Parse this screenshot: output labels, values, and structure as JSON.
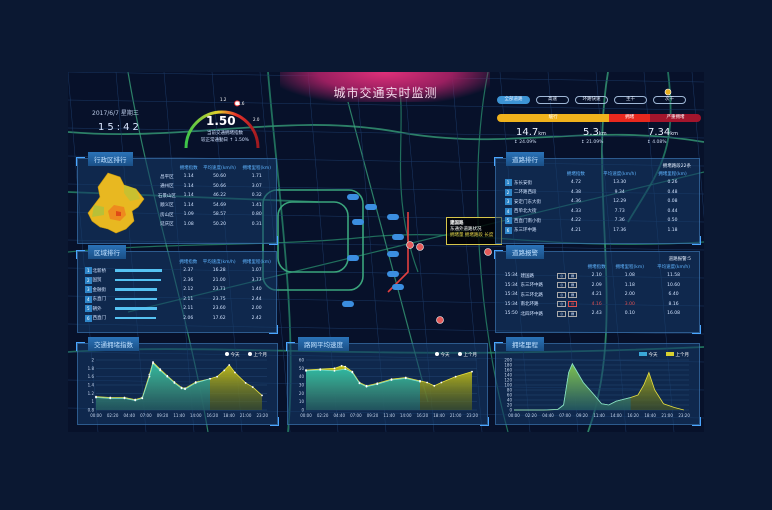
{
  "header": {
    "title": "城市交通实时监测",
    "date": "2017/6/7 星期三",
    "time": "15:42"
  },
  "gauge": {
    "value": "1.50",
    "label": "当前交通拥堵指数",
    "compare": "较正常通勤日 ↑ 1.50%",
    "ticks": [
      "1.2",
      "1.6",
      "2.0"
    ],
    "fraction": 0.6
  },
  "tabs": [
    "全部道路",
    "高速",
    "环路快速",
    "主干",
    "次干"
  ],
  "status_bar": {
    "segments": [
      {
        "label": "缓行",
        "color": "#f0b21c",
        "share": 0.55
      },
      {
        "label": "拥堵",
        "color": "#e8281e",
        "share": 0.2
      },
      {
        "label": "严重拥堵",
        "color": "#a3152c",
        "share": 0.25
      }
    ],
    "stats": [
      {
        "value": "14.7",
        "unit": "km",
        "pct": "↕ 24.09%"
      },
      {
        "value": "5.3",
        "unit": "km",
        "pct": "↕ 21.09%"
      },
      {
        "value": "7.34",
        "unit": "km",
        "pct": "↕ 4.08%"
      }
    ]
  },
  "district": {
    "title": "行政区排行",
    "headers": [
      "",
      "拥堵指数",
      "平均速度(km/h)",
      "拥堵里程(km)"
    ],
    "rows": [
      [
        "昌平区",
        "1.14",
        "50.60",
        "1.71"
      ],
      [
        "通州区",
        "1.14",
        "50.66",
        "3.07"
      ],
      [
        "石景山区",
        "1.14",
        "46.22",
        "0.32"
      ],
      [
        "顺义区",
        "1.14",
        "54.69",
        "1.41"
      ],
      [
        "房山区",
        "1.09",
        "58.57",
        "0.80"
      ],
      [
        "延庆区",
        "1.08",
        "50.20",
        "0.31"
      ]
    ]
  },
  "area": {
    "title": "区域排行",
    "headers": [
      "",
      "",
      "拥堵指数",
      "平均速度(km/h)",
      "拥堵里程(km)"
    ],
    "rows": [
      [
        "1",
        "北新桥",
        0.95,
        "2.37",
        "16.28",
        "1.07"
      ],
      [
        "2",
        "国贸",
        0.93,
        "2.36",
        "21.00",
        "3.77"
      ],
      [
        "3",
        "金融街",
        0.85,
        "2.12",
        "23.71",
        "1.40"
      ],
      [
        "4",
        "东直门",
        0.84,
        "2.11",
        "23.75",
        "2.44"
      ],
      [
        "5",
        "朝外",
        0.84,
        "2.11",
        "23.60",
        "2.00"
      ],
      [
        "6",
        "西直门",
        0.82,
        "2.06",
        "17.62",
        "2.42"
      ]
    ]
  },
  "road": {
    "title": "道路排行",
    "extra": "拥堵路段22条",
    "headers": [
      "",
      "",
      "拥堵指数",
      "平均速度(km/h)",
      "拥堵里程(km)"
    ],
    "rows": [
      [
        "1",
        "东长安街",
        "4.72",
        "13.30",
        "0.26"
      ],
      [
        "2",
        "二环路西段",
        "4.38",
        "9.34",
        "0.48"
      ],
      [
        "3",
        "安定门东大街",
        "4.36",
        "12.29",
        "0.08"
      ],
      [
        "4",
        "西单北大街",
        "4.33",
        "7.73",
        "0.44"
      ],
      [
        "5",
        "西直门南小街",
        "4.22",
        "7.36",
        "0.50"
      ],
      [
        "6",
        "东三环中路",
        "4.21",
        "17.36",
        "1.18"
      ]
    ]
  },
  "alarm": {
    "title": "道路报警",
    "extra": "道路报警:5",
    "headers": [
      "",
      "",
      "",
      "拥堵指数",
      "拥堵里程(km)",
      "平均速度(km/h)"
    ],
    "rows": [
      [
        "15:34",
        "建国路",
        "2.10",
        "1.08",
        "11.58",
        false
      ],
      [
        "15:34",
        "东三环中路",
        "2.09",
        "1.18",
        "10.60",
        false
      ],
      [
        "15:34",
        "东三环北路",
        "4.21",
        "2.00",
        "6.40",
        false
      ],
      [
        "15:34",
        "南北环路",
        "4.16",
        "3.00",
        "8.16",
        true
      ],
      [
        "15:50",
        "北四环中路",
        "2.43",
        "0.10",
        "16.08",
        false
      ]
    ]
  },
  "tooltip": {
    "title": "建国路",
    "line1": "东通外道路状况",
    "line2": "拥堵量  拥堵路段  长度"
  },
  "chart_data": [
    {
      "type": "area",
      "title": "交通拥堵指数",
      "legend": [
        "今天",
        "上个月"
      ],
      "ylim": [
        0.8,
        2
      ],
      "yticks": [
        "0.8",
        "1",
        "1.2",
        "1.4",
        "1.6",
        "1.8",
        "2"
      ],
      "xticks": [
        "00:00",
        "02:20",
        "04:40",
        "07:00",
        "09:20",
        "11:40",
        "14:00",
        "16:20",
        "18:40",
        "21:00",
        "23:20"
      ],
      "series": [
        {
          "name": "今天",
          "x": [
            0,
            2,
            4,
            5.5,
            6.5,
            7.5,
            8,
            9,
            10,
            11,
            12,
            12.5,
            14,
            16
          ],
          "y": [
            1.1,
            1.08,
            1.08,
            1.03,
            1.08,
            1.6,
            1.92,
            1.75,
            1.6,
            1.45,
            1.32,
            1.3,
            1.45,
            1.55
          ]
        },
        {
          "name": "上个月",
          "x": [
            0,
            2,
            4,
            5.5,
            6.5,
            7.5,
            8,
            9,
            10,
            11,
            12,
            12.5,
            14,
            16,
            17,
            18,
            18.7,
            19.5,
            21,
            22,
            23.3
          ],
          "y": [
            1.12,
            1.1,
            1.1,
            1.05,
            1.1,
            1.65,
            1.95,
            1.78,
            1.62,
            1.47,
            1.34,
            1.32,
            1.47,
            1.55,
            1.6,
            1.75,
            1.88,
            1.7,
            1.45,
            1.35,
            1.15
          ]
        }
      ]
    },
    {
      "type": "area",
      "title": "路网平均速度",
      "legend": [
        "今天",
        "上个月"
      ],
      "ylim": [
        0,
        60
      ],
      "yticks": [
        "0",
        "10",
        "20",
        "30",
        "40",
        "50",
        "60"
      ],
      "xticks": [
        "00:00",
        "02:20",
        "04:40",
        "07:00",
        "09:20",
        "11:40",
        "14:00",
        "16:20",
        "18:40",
        "21:00",
        "23:20"
      ],
      "series": [
        {
          "name": "今天",
          "x": [
            0,
            2,
            4,
            5.5,
            6.5,
            7.5,
            8.5,
            10,
            12,
            14,
            16
          ],
          "y": [
            47,
            48,
            47,
            49,
            45,
            32,
            28,
            31,
            36,
            38,
            34
          ]
        },
        {
          "name": "上个月",
          "x": [
            0,
            2,
            4,
            5,
            5.5,
            6.5,
            7.5,
            8.5,
            10,
            12,
            14,
            16,
            17,
            18,
            19,
            21,
            23.3
          ],
          "y": [
            48,
            49,
            50,
            53,
            52,
            46,
            33,
            29,
            32,
            37,
            39,
            35,
            33,
            29,
            33,
            40,
            46
          ]
        }
      ]
    },
    {
      "type": "area",
      "title": "拥堵里程",
      "legend": [
        "今天",
        "上个月"
      ],
      "ylim": [
        0,
        200
      ],
      "yticks": [
        "0",
        "20",
        "40",
        "60",
        "80",
        "100",
        "120",
        "140",
        "160",
        "180",
        "200"
      ],
      "xticks": [
        "00:00",
        "02:20",
        "04:40",
        "07:00",
        "09:20",
        "11:40",
        "14:00",
        "16:20",
        "18:40",
        "21:00",
        "23:20"
      ],
      "series": [
        {
          "name": "今天",
          "x": [
            0,
            4,
            6,
            6.8,
            7.5,
            8,
            8.5,
            9.5,
            11,
            12,
            13,
            14,
            16
          ],
          "y": [
            0,
            0,
            2,
            20,
            150,
            185,
            160,
            110,
            60,
            25,
            20,
            35,
            50
          ]
        },
        {
          "name": "上个月",
          "x": [
            0,
            4,
            6,
            6.8,
            7.5,
            8,
            8.5,
            9.5,
            11,
            12,
            13,
            14,
            16,
            17,
            17.8,
            18.5,
            19.3,
            20.5,
            22,
            23.3
          ],
          "y": [
            0,
            0,
            2,
            20,
            150,
            185,
            160,
            110,
            60,
            25,
            20,
            35,
            50,
            60,
            100,
            150,
            80,
            25,
            10,
            0
          ]
        }
      ]
    }
  ]
}
